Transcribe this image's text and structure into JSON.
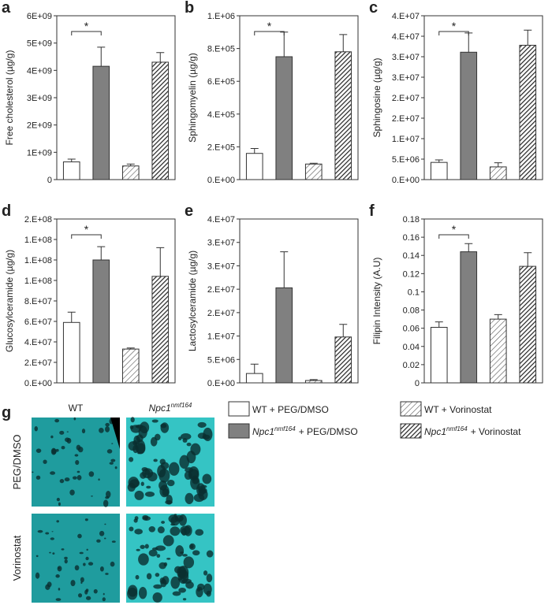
{
  "chart_data": [
    {
      "type": "bar",
      "panel": "a",
      "ylabel": "Free cholesterol (µg/g)",
      "values": [
        650000000,
        4150000000,
        500000000,
        4300000000
      ],
      "errors": [
        100000000,
        700000000,
        70000000,
        350000000
      ],
      "ylim": [
        0,
        6000000000
      ],
      "yticks": [
        0,
        {
          "value": 1000000000,
          "label": "1E+09"
        },
        {
          "value": 2000000000,
          "label": "2E+09"
        },
        {
          "value": 3000000000,
          "label": "3E+09"
        },
        {
          "value": 4000000000,
          "label": "4E+09"
        },
        {
          "value": 5000000000,
          "label": "5E+09"
        },
        {
          "value": 6000000000,
          "label": "6E+09"
        }
      ],
      "significance": "*"
    },
    {
      "type": "bar",
      "panel": "b",
      "ylabel": "Sphingomyelin (µg/g)",
      "values": [
        160000,
        750000,
        95000,
        780000
      ],
      "errors": [
        30000,
        150000,
        5000,
        105000
      ],
      "ylim": [
        0,
        1000000
      ],
      "yticks": [
        {
          "value": 0,
          "label": "0.E+00"
        },
        {
          "value": 200000,
          "label": "2.E+05"
        },
        {
          "value": 400000,
          "label": "4.E+05"
        },
        {
          "value": 600000,
          "label": "6.E+05"
        },
        {
          "value": 800000,
          "label": "8.E+05"
        },
        {
          "value": 1000000,
          "label": "1.E+06"
        }
      ],
      "significance": "*"
    },
    {
      "type": "bar",
      "panel": "c",
      "ylabel": "Sphingosine (µg/g)",
      "values": [
        4200000,
        31100000,
        3100000,
        32800000
      ],
      "errors": [
        600000,
        4700000,
        1000000,
        3700000
      ],
      "ylim": [
        0,
        40000000
      ],
      "yticks": [
        {
          "value": 0,
          "label": "0.E+00"
        },
        {
          "value": 5000000,
          "label": "5.E+06"
        },
        {
          "value": 10000000,
          "label": "1.E+07"
        },
        {
          "value": 15000000,
          "label": "2.E+07"
        },
        {
          "value": 20000000,
          "label": "2.E+07"
        },
        {
          "value": 25000000,
          "label": "3.E+07"
        },
        {
          "value": 30000000,
          "label": "3.E+07"
        },
        {
          "value": 35000000,
          "label": "4.E+07"
        },
        {
          "value": 40000000,
          "label": "4.E+07"
        }
      ],
      "significance": "*"
    },
    {
      "type": "bar",
      "panel": "d",
      "ylabel": "Glucosylceramide (µg/g)",
      "values": [
        59000000,
        120000000,
        33000000,
        104000000
      ],
      "errors": [
        10000000,
        13000000,
        1000000,
        28000000
      ],
      "ylim": [
        0,
        160000000
      ],
      "yticks": [
        {
          "value": 0,
          "label": "0.E+00"
        },
        {
          "value": 20000000,
          "label": "2.E+07"
        },
        {
          "value": 40000000,
          "label": "4.E+07"
        },
        {
          "value": 60000000,
          "label": "6.E+07"
        },
        {
          "value": 80000000,
          "label": "8.E+07"
        },
        {
          "value": 100000000,
          "label": "1.E+08"
        },
        {
          "value": 120000000,
          "label": "1.E+08"
        },
        {
          "value": 140000000,
          "label": "1.E+08"
        },
        {
          "value": 160000000,
          "label": "2.E+08"
        }
      ],
      "significance": "*"
    },
    {
      "type": "bar",
      "panel": "e",
      "ylabel": "Lactosylceramide (µg/g)",
      "values": [
        2000000,
        20300000,
        500000,
        9800000
      ],
      "errors": [
        2000000,
        7700000,
        200000,
        2700000
      ],
      "ylim": [
        0,
        35000000
      ],
      "yticks": [
        {
          "value": 0,
          "label": "0.E+00"
        },
        {
          "value": 5000000,
          "label": "5.E+06"
        },
        {
          "value": 10000000,
          "label": "1.E+07"
        },
        {
          "value": 15000000,
          "label": "2.E+07"
        },
        {
          "value": 20000000,
          "label": "2.E+07"
        },
        {
          "value": 25000000,
          "label": "3.E+07"
        },
        {
          "value": 30000000,
          "label": "3.E+07"
        },
        {
          "value": 35000000,
          "label": "4.E+07"
        }
      ]
    },
    {
      "type": "bar",
      "panel": "f",
      "ylabel": "Filipin Intensity (A.U)",
      "values": [
        0.061,
        0.144,
        0.07,
        0.128
      ],
      "errors": [
        0.006,
        0.009,
        0.005,
        0.015
      ],
      "ylim": [
        0,
        0.18
      ],
      "yticks": [
        0,
        0.02,
        0.04,
        0.06,
        0.08,
        0.1,
        0.12,
        0.14,
        0.16,
        0.18
      ],
      "significance": "*"
    }
  ],
  "groups": [
    {
      "name": "WT + PEG/DMSO",
      "fill": "#ffffff"
    },
    {
      "gene": "Npc1",
      "allele": "nmf164",
      "treatment": "+ PEG/DMSO",
      "fill": "#808080"
    },
    {
      "name": "WT + Vorinostat",
      "fill": "#ffffff",
      "hatch": "sparse"
    },
    {
      "gene": "Npc1",
      "allele": "nmf164",
      "treatment": "+ Vorinostat",
      "fill": "#404040",
      "hatch": "dense"
    }
  ],
  "panel_g": {
    "panel": "g",
    "columns": [
      {
        "name": "WT"
      },
      {
        "gene": "Npc1",
        "allele": "nmf164"
      }
    ],
    "rows": [
      "PEG/DMSO",
      "Vorinostat"
    ]
  }
}
